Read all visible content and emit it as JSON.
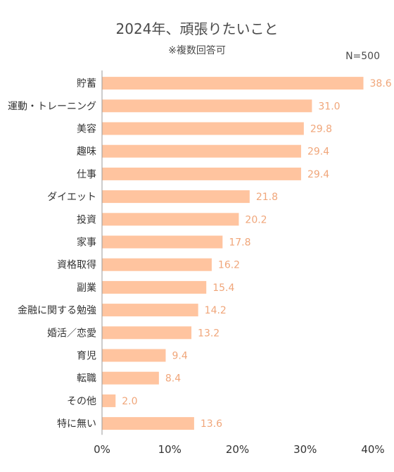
{
  "chart_data": {
    "type": "bar",
    "orientation": "horizontal",
    "title": "2024年、頑張りたいこと",
    "subtitle": "※複数回答可",
    "note": "N=500",
    "categories": [
      "貯蓄",
      "運動・トレーニング",
      "美容",
      "趣味",
      "仕事",
      "ダイエット",
      "投資",
      "家事",
      "資格取得",
      "副業",
      "金融に関する勉強",
      "婚活／恋愛",
      "育児",
      "転職",
      "その他",
      "特に無い"
    ],
    "values": [
      38.6,
      31.0,
      29.8,
      29.4,
      29.4,
      21.8,
      20.2,
      17.8,
      16.2,
      15.4,
      14.2,
      13.2,
      9.4,
      8.4,
      2.0,
      13.6
    ],
    "value_labels": [
      "38.6",
      "31.0",
      "29.8",
      "29.4",
      "29.4",
      "21.8",
      "20.2",
      "17.8",
      "16.2",
      "15.4",
      "14.2",
      "13.2",
      "9.4",
      "8.4",
      "2.0",
      "13.6"
    ],
    "xlim": [
      0,
      40
    ],
    "xticks": [
      0,
      10,
      20,
      30,
      40
    ],
    "xtick_labels": [
      "0%",
      "10%",
      "20%",
      "30%",
      "40%"
    ],
    "bar_color": "#ffc49f",
    "label_color": "#f0a67a",
    "grid": false
  }
}
